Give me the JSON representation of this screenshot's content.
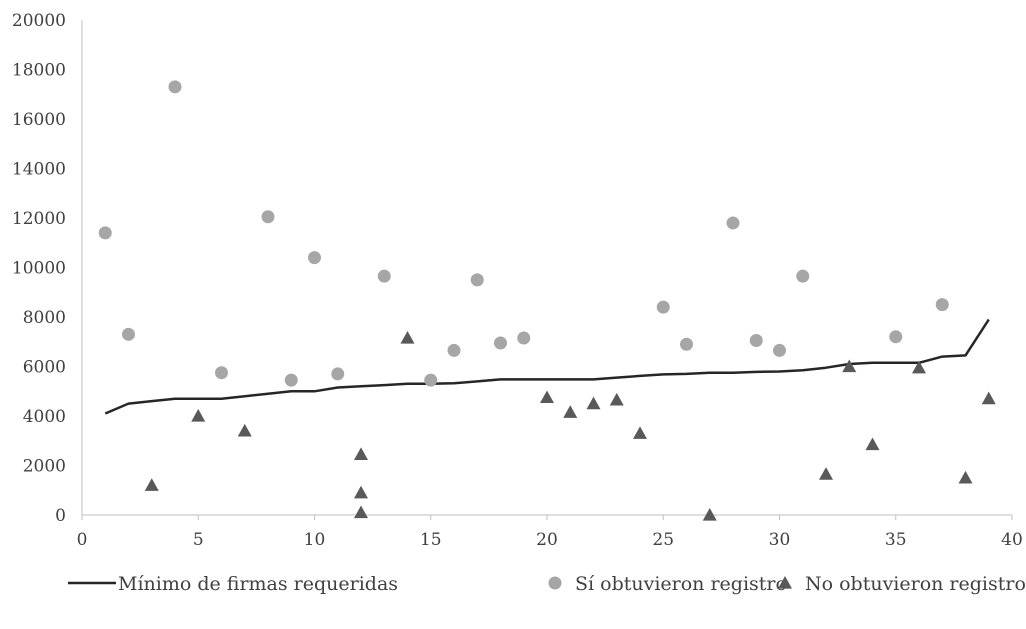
{
  "chart_data": {
    "type": "scatter",
    "title": "",
    "xlabel": "",
    "ylabel": "",
    "xlim": [
      0,
      40
    ],
    "ylim": [
      0,
      20000
    ],
    "x_ticks": [
      0,
      5,
      10,
      15,
      20,
      25,
      30,
      35,
      40
    ],
    "y_ticks": [
      0,
      2000,
      4000,
      6000,
      8000,
      10000,
      12000,
      14000,
      16000,
      18000,
      20000
    ],
    "grid": false,
    "legend_position": "bottom",
    "colors": {
      "line": "#262626",
      "circle": "#a6a6a6",
      "triangle": "#595959",
      "axis": "#bfbfbf",
      "text": "#404040"
    },
    "series": [
      {
        "name": "Mínimo de firmas requeridas",
        "kind": "line",
        "points": [
          [
            1,
            4100
          ],
          [
            2,
            4500
          ],
          [
            3,
            4600
          ],
          [
            4,
            4700
          ],
          [
            5,
            4700
          ],
          [
            6,
            4700
          ],
          [
            7,
            4800
          ],
          [
            8,
            4900
          ],
          [
            9,
            5000
          ],
          [
            10,
            5000
          ],
          [
            11,
            5150
          ],
          [
            12,
            5200
          ],
          [
            13,
            5250
          ],
          [
            14,
            5300
          ],
          [
            15,
            5300
          ],
          [
            16,
            5320
          ],
          [
            17,
            5400
          ],
          [
            18,
            5480
          ],
          [
            19,
            5480
          ],
          [
            20,
            5480
          ],
          [
            21,
            5480
          ],
          [
            22,
            5480
          ],
          [
            23,
            5550
          ],
          [
            24,
            5620
          ],
          [
            25,
            5680
          ],
          [
            26,
            5700
          ],
          [
            27,
            5750
          ],
          [
            28,
            5750
          ],
          [
            29,
            5780
          ],
          [
            30,
            5800
          ],
          [
            31,
            5850
          ],
          [
            32,
            5950
          ],
          [
            33,
            6100
          ],
          [
            34,
            6150
          ],
          [
            35,
            6150
          ],
          [
            36,
            6150
          ],
          [
            37,
            6400
          ],
          [
            38,
            6450
          ],
          [
            39,
            7900
          ]
        ]
      },
      {
        "name": "Sí obtuvieron registro",
        "kind": "circle",
        "points": [
          [
            1,
            11400
          ],
          [
            2,
            7300
          ],
          [
            4,
            17300
          ],
          [
            6,
            5750
          ],
          [
            8,
            12050
          ],
          [
            9,
            5450
          ],
          [
            10,
            10400
          ],
          [
            11,
            5700
          ],
          [
            13,
            9650
          ],
          [
            15,
            5450
          ],
          [
            16,
            6650
          ],
          [
            17,
            9500
          ],
          [
            18,
            6950
          ],
          [
            19,
            7150
          ],
          [
            25,
            8400
          ],
          [
            26,
            6900
          ],
          [
            28,
            11800
          ],
          [
            29,
            7050
          ],
          [
            30,
            6650
          ],
          [
            31,
            9650
          ],
          [
            35,
            7200
          ],
          [
            37,
            8500
          ]
        ]
      },
      {
        "name": "No obtuvieron registro",
        "kind": "triangle",
        "points": [
          [
            3,
            1200
          ],
          [
            5,
            4000
          ],
          [
            7,
            3400
          ],
          [
            12,
            2450
          ],
          [
            12,
            900
          ],
          [
            12,
            100
          ],
          [
            14,
            7150
          ],
          [
            20,
            4750
          ],
          [
            21,
            4150
          ],
          [
            22,
            4500
          ],
          [
            23,
            4650
          ],
          [
            24,
            3300
          ],
          [
            27,
            0
          ],
          [
            32,
            1650
          ],
          [
            33,
            6000
          ],
          [
            34,
            2850
          ],
          [
            36,
            5950
          ],
          [
            38,
            1500
          ],
          [
            39,
            4700
          ]
        ]
      }
    ]
  }
}
